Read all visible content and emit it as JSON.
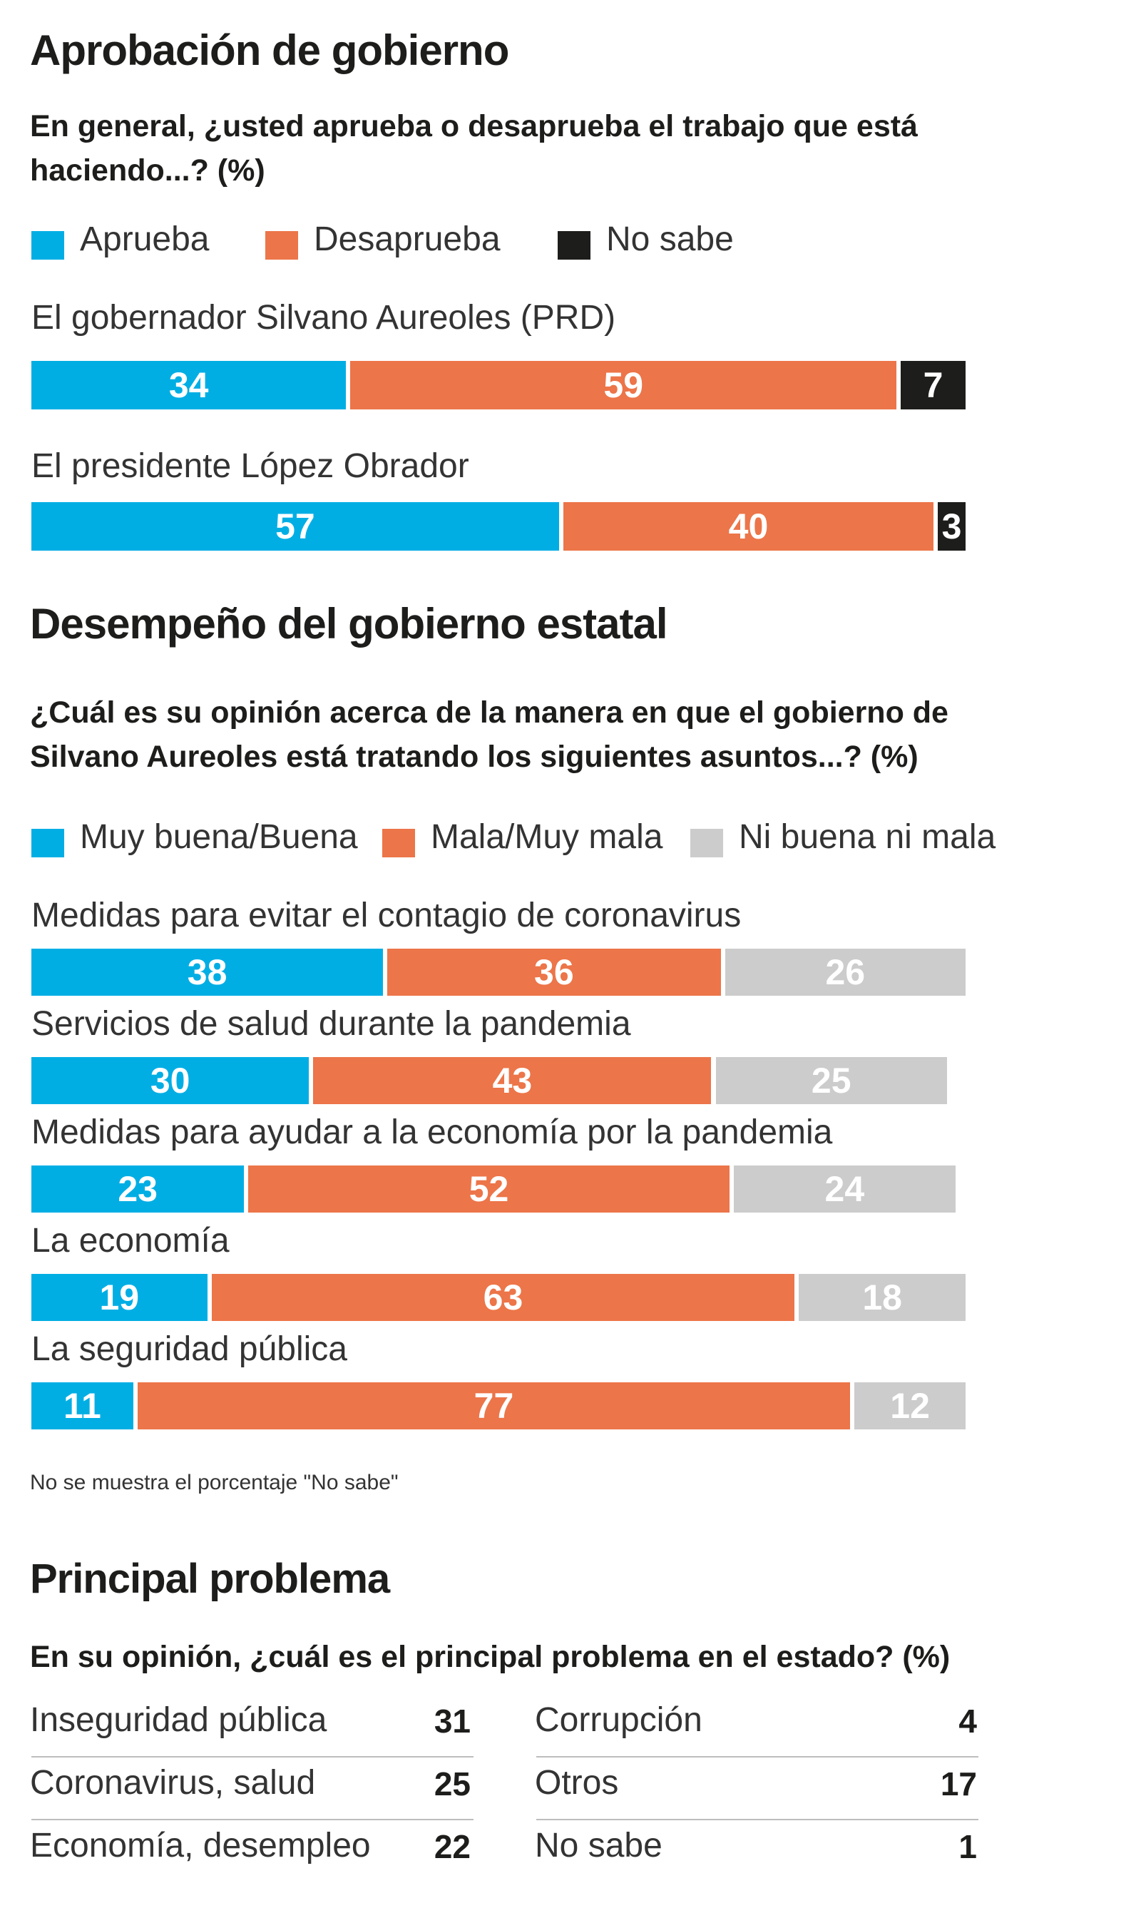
{
  "sections": {
    "approval": {
      "title": "Aprobación de gobierno",
      "question": "En general, ¿usted aprueba o desaprueba el trabajo que está haciendo...? (%)",
      "legend": [
        {
          "label": "Aprueba",
          "color": "#00aee4"
        },
        {
          "label": "Desaprueba",
          "color": "#ec7549"
        },
        {
          "label": "No sabe",
          "color": "#1d1d1b"
        }
      ]
    },
    "performance": {
      "title": "Desempeño del gobierno estatal",
      "question": "¿Cuál es su opinión acerca de la manera en que el gobierno de Silvano Aureoles está tratando los siguientes asuntos...? (%)",
      "legend": [
        {
          "label": "Muy buena/Buena",
          "color": "#00aee4"
        },
        {
          "label": "Mala/Muy mala",
          "color": "#ec7549"
        },
        {
          "label": "Ni buena ni mala",
          "color": "#cccccc"
        }
      ],
      "note": "No se muestra el porcentaje \"No sabe\""
    },
    "problem": {
      "title": "Principal problema",
      "question": "En su opinión, ¿cuál es el principal problema en el estado? (%)"
    }
  },
  "chart_data": [
    {
      "type": "bar",
      "stacked": true,
      "orientation": "horizontal",
      "title": "Aprobación de gobierno",
      "categories": [
        "El gobernador Silvano Aureoles (PRD)",
        "El presidente López Obrador"
      ],
      "series": [
        {
          "name": "Aprueba",
          "values": [
            34,
            57
          ],
          "color": "#00aee4"
        },
        {
          "name": "Desaprueba",
          "values": [
            59,
            40
          ],
          "color": "#ec7549"
        },
        {
          "name": "No sabe",
          "values": [
            7,
            3
          ],
          "color": "#1d1d1b"
        }
      ],
      "xlim": [
        0,
        100
      ]
    },
    {
      "type": "bar",
      "stacked": true,
      "orientation": "horizontal",
      "title": "Desempeño del gobierno estatal",
      "categories": [
        "Medidas para evitar el contagio de coronavirus",
        "Servicios de salud durante la pandemia",
        "Medidas para ayudar a la economía por la pandemia",
        "La economía",
        "La seguridad pública"
      ],
      "series": [
        {
          "name": "Muy buena/Buena",
          "values": [
            38,
            30,
            23,
            19,
            11
          ],
          "color": "#00aee4"
        },
        {
          "name": "Mala/Muy mala",
          "values": [
            36,
            43,
            52,
            63,
            77
          ],
          "color": "#ec7549"
        },
        {
          "name": "Ni buena ni mala",
          "values": [
            26,
            25,
            24,
            18,
            12
          ],
          "color": "#cccccc"
        }
      ],
      "xlim": [
        0,
        100
      ]
    },
    {
      "type": "table",
      "title": "Principal problema",
      "rows": [
        {
          "label": "Inseguridad pública",
          "value": 31
        },
        {
          "label": "Coronavirus, salud",
          "value": 25
        },
        {
          "label": "Economía, desempleo",
          "value": 22
        },
        {
          "label": "Corrupción",
          "value": 4
        },
        {
          "label": "Otros",
          "value": 17
        },
        {
          "label": "No sabe",
          "value": 1
        }
      ]
    }
  ]
}
